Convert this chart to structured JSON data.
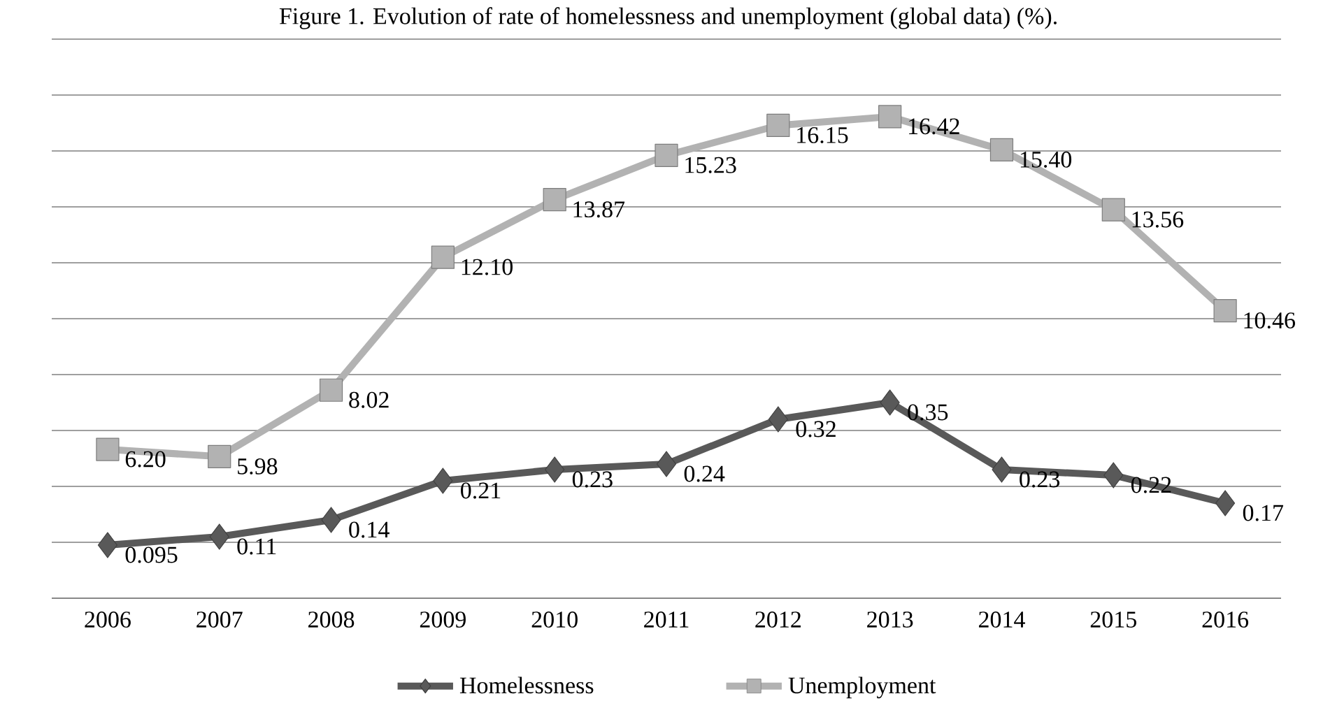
{
  "chart_data": {
    "type": "line",
    "title": "Figure 1. Evolution of rate of homelessness and unemployment (global data) (%).",
    "categories": [
      "2006",
      "2007",
      "2008",
      "2009",
      "2010",
      "2011",
      "2012",
      "2013",
      "2014",
      "2015",
      "2016"
    ],
    "series": [
      {
        "name": "Homelessness",
        "color": "#595959",
        "marker": "diamond",
        "values": [
          0.095,
          0.11,
          0.14,
          0.21,
          0.23,
          0.24,
          0.32,
          0.35,
          0.23,
          0.22,
          0.17
        ],
        "value_labels": [
          "0.095",
          "0.11",
          "0.14",
          "0.21",
          "0.23",
          "0.24",
          "0.32",
          "0.35",
          "0.23",
          "0.22",
          "0.17"
        ]
      },
      {
        "name": "Unemployment",
        "color": "#b2b2b2",
        "marker": "square",
        "axis": "y2",
        "values": [
          6.2,
          5.98,
          8.02,
          12.1,
          13.87,
          15.23,
          16.15,
          16.42,
          15.4,
          13.56,
          10.46
        ],
        "value_labels": [
          "6.20",
          "5.98",
          "8.02",
          "12.10",
          "13.87",
          "15.23",
          "16.15",
          "16.42",
          "15.40",
          "13.56",
          "10.46"
        ]
      }
    ],
    "ylim": [
      0,
      1
    ],
    "yticks": [
      {
        "value": 0,
        "label": null
      },
      {
        "value": 0.1,
        "label": null
      },
      {
        "value": 0.2,
        "label": null
      },
      {
        "value": 0.3,
        "label": null
      },
      {
        "value": 0.4,
        "label": null
      },
      {
        "value": 0.5,
        "label": null
      },
      {
        "value": 0.6,
        "label": null
      },
      {
        "value": 0.7,
        "label": null
      },
      {
        "value": 0.8,
        "label": null
      },
      {
        "value": 0.9,
        "label": null
      },
      {
        "value": 1,
        "label": null
      }
    ],
    "y2lim": [
      1.63,
      18.8
    ],
    "grid": "y",
    "legend": "bottom",
    "tick_labels": "x"
  }
}
